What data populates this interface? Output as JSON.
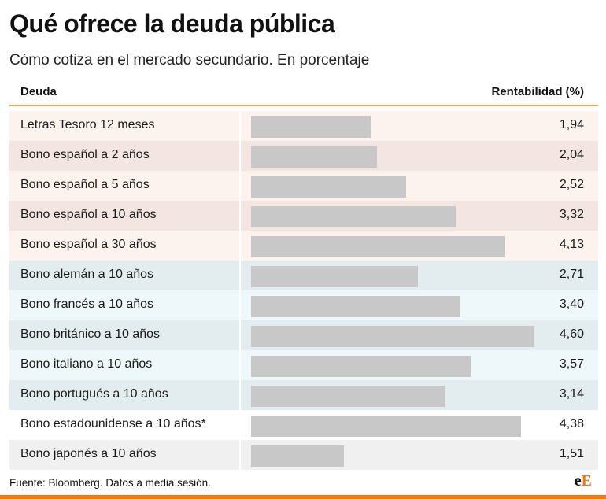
{
  "header": {
    "title": "Qué ofrece la deuda pública",
    "subtitle": "Cómo cotiza en el mercado secundario. En porcentaje"
  },
  "table": {
    "col_label": "Deuda",
    "col_value": "Rentabilidad (%)"
  },
  "footer": {
    "source": "Fuente: Bloomberg. Datos a media sesión.",
    "logo_part1": "e",
    "logo_part2": "E"
  },
  "colors": {
    "bar": "#c8c8c8",
    "accent": "#f07a10",
    "header_rule": "#f4a261"
  },
  "chart_data": {
    "type": "bar",
    "orientation": "horizontal",
    "title": "Qué ofrece la deuda pública",
    "subtitle": "Cómo cotiza en el mercado secundario. En porcentaje",
    "xlabel": "Rentabilidad (%)",
    "ylabel": "Deuda",
    "xlim": [
      0,
      4.6
    ],
    "categories": [
      "Letras Tesoro 12 meses",
      "Bono español a 2 años",
      "Bono español a 5 años",
      "Bono español a 10 años",
      "Bono español a 30 años",
      "Bono alemán a 10 años",
      "Bono francés a 10 años",
      "Bono británico a 10 años",
      "Bono italiano a 10 años",
      "Bono portugués a 10 años",
      "Bono estadounidense a 10 años*",
      "Bono japonés a 10 años"
    ],
    "values": [
      1.94,
      2.04,
      2.52,
      3.32,
      4.13,
      2.71,
      3.4,
      4.6,
      3.57,
      3.14,
      4.38,
      1.51
    ],
    "value_labels": [
      "1,94",
      "2,04",
      "2,52",
      "3,32",
      "4,13",
      "2,71",
      "3,40",
      "4,60",
      "3,57",
      "3,14",
      "4,38",
      "1,51"
    ],
    "groups": [
      1,
      1,
      1,
      1,
      1,
      2,
      2,
      2,
      2,
      2,
      3,
      3
    ]
  }
}
